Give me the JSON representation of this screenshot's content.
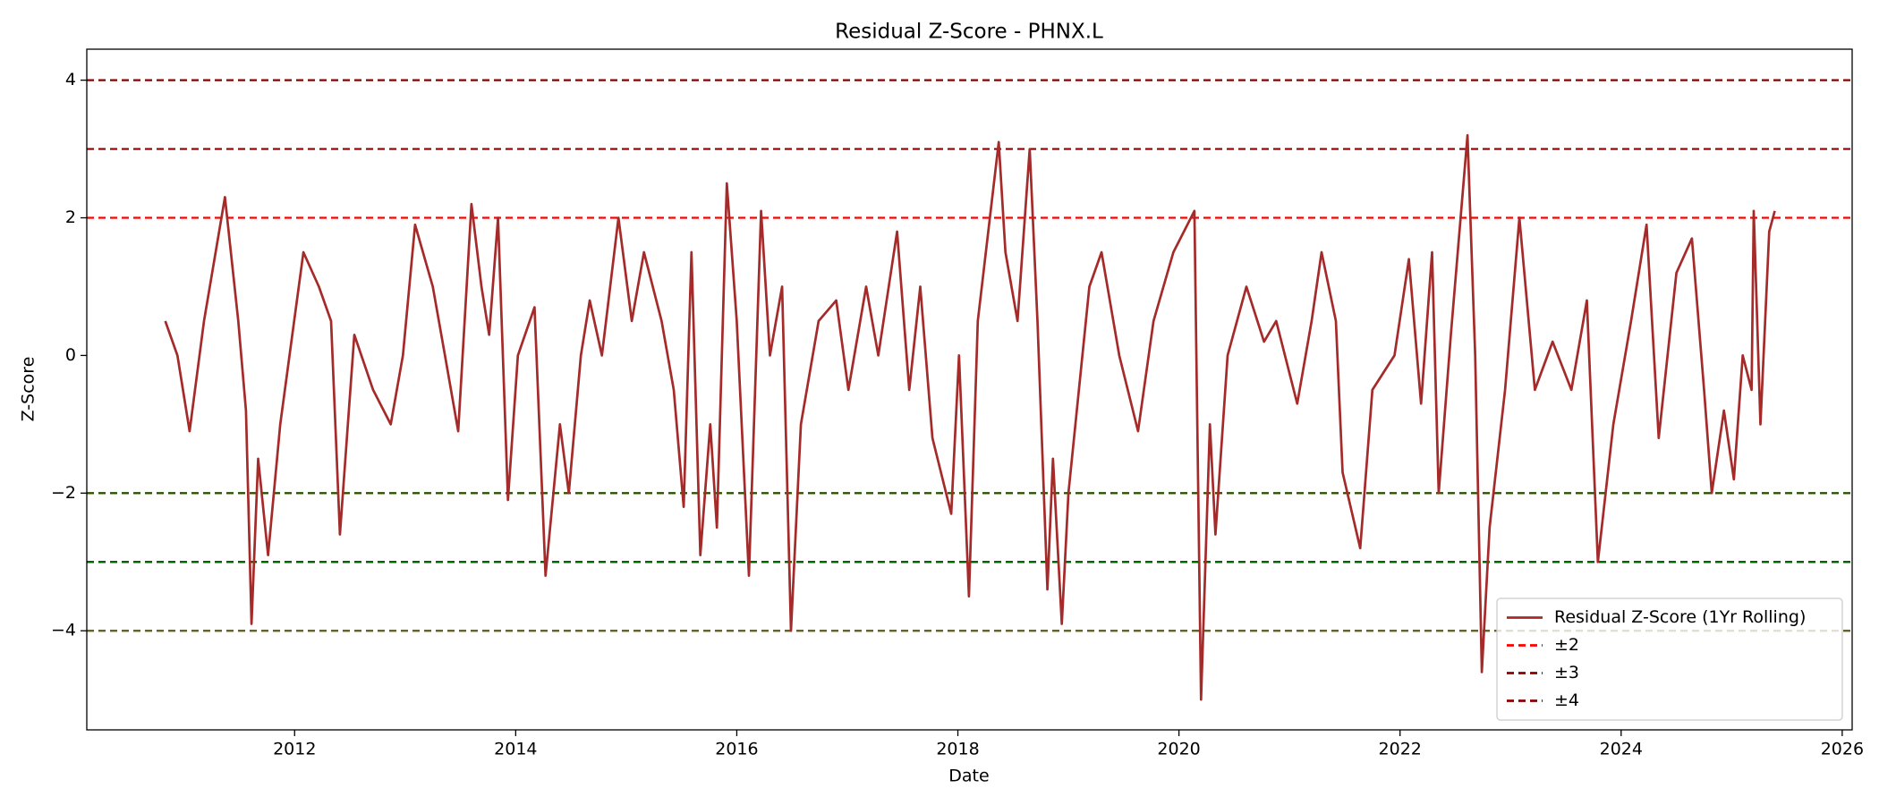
{
  "chart_data": {
    "type": "line",
    "title": "Residual Z-Score - PHNX.L",
    "x_label": "Date",
    "y_label": "Z-Score",
    "xlim": [
      2010.12,
      2026.09
    ],
    "xticks": [
      2012,
      2014,
      2016,
      2018,
      2020,
      2022,
      2024,
      2026
    ],
    "ylim": [
      -5.44,
      4.45
    ],
    "yticks": [
      {
        "value": -4,
        "label": "−4"
      },
      {
        "value": -2,
        "label": "−2"
      },
      0,
      2,
      4
    ],
    "legend": "lower right",
    "x": [
      2010.83,
      2010.94,
      2011.05,
      2011.18,
      2011.37,
      2011.49,
      2011.56,
      2011.61,
      2011.67,
      2011.76,
      2011.87,
      2012.08,
      2012.22,
      2012.33,
      2012.41,
      2012.54,
      2012.71,
      2012.87,
      2012.98,
      2013.09,
      2013.25,
      2013.36,
      2013.48,
      2013.6,
      2013.69,
      2013.76,
      2013.84,
      2013.93,
      2014.02,
      2014.17,
      2014.27,
      2014.4,
      2014.48,
      2014.59,
      2014.67,
      2014.78,
      2014.93,
      2015.05,
      2015.16,
      2015.32,
      2015.43,
      2015.52,
      2015.59,
      2015.67,
      2015.76,
      2015.82,
      2015.91,
      2016.0,
      2016.11,
      2016.22,
      2016.3,
      2016.41,
      2016.49,
      2016.58,
      2016.74,
      2016.9,
      2017.01,
      2017.17,
      2017.28,
      2017.45,
      2017.56,
      2017.66,
      2017.77,
      2017.94,
      2018.01,
      2018.1,
      2018.18,
      2018.37,
      2018.43,
      2018.54,
      2018.65,
      2018.72,
      2018.81,
      2018.86,
      2018.94,
      2019.0,
      2019.19,
      2019.3,
      2019.46,
      2019.63,
      2019.77,
      2019.95,
      2020.14,
      2020.2,
      2020.28,
      2020.33,
      2020.44,
      2020.61,
      2020.77,
      2020.88,
      2021.07,
      2021.2,
      2021.29,
      2021.42,
      2021.48,
      2021.64,
      2021.75,
      2021.95,
      2022.08,
      2022.19,
      2022.29,
      2022.35,
      2022.46,
      2022.61,
      2022.68,
      2022.74,
      2022.81,
      2022.95,
      2023.08,
      2023.22,
      2023.38,
      2023.55,
      2023.69,
      2023.79,
      2023.93,
      2024.09,
      2024.23,
      2024.34,
      2024.5,
      2024.64,
      2024.75,
      2024.82,
      2024.93,
      2025.02,
      2025.1,
      2025.18,
      2025.2,
      2025.26,
      2025.34,
      2025.39
    ],
    "series": [
      {
        "name": "Residual Z-Score (1Yr Rolling)",
        "color": "#a52a2a",
        "values": [
          0.5,
          0.0,
          -1.1,
          0.5,
          2.3,
          0.5,
          -0.8,
          -3.9,
          -1.5,
          -2.9,
          -1.0,
          1.5,
          1.0,
          0.5,
          -2.6,
          0.3,
          -0.5,
          -1.0,
          0.0,
          1.9,
          1.0,
          0.0,
          -1.1,
          2.2,
          1.0,
          0.3,
          2.0,
          -2.1,
          0.0,
          0.7,
          -3.2,
          -1.0,
          -2.0,
          0.0,
          0.8,
          0.0,
          2.0,
          0.5,
          1.5,
          0.5,
          -0.5,
          -2.2,
          1.5,
          -2.9,
          -1.0,
          -2.5,
          2.5,
          0.5,
          -3.2,
          2.1,
          0.0,
          1.0,
          -4.0,
          -1.0,
          0.5,
          0.8,
          -0.5,
          1.0,
          0.0,
          1.8,
          -0.5,
          1.0,
          -1.2,
          -2.3,
          0.0,
          -3.5,
          0.5,
          3.1,
          1.5,
          0.5,
          3.0,
          0.5,
          -3.4,
          -1.5,
          -3.9,
          -2.0,
          1.0,
          1.5,
          0.0,
          -1.1,
          0.5,
          1.5,
          2.1,
          -5.0,
          -1.0,
          -2.6,
          0.0,
          1.0,
          0.2,
          0.5,
          -0.7,
          0.5,
          1.5,
          0.5,
          -1.7,
          -2.8,
          -0.5,
          0.0,
          1.4,
          -0.7,
          1.5,
          -2.0,
          0.3,
          3.2,
          0.0,
          -4.6,
          -2.5,
          -0.5,
          2.0,
          -0.5,
          0.2,
          -0.5,
          0.8,
          -3.0,
          -1.0,
          0.5,
          1.9,
          -1.2,
          1.2,
          1.7,
          -0.5,
          -2.0,
          -0.8,
          -1.8,
          0.0,
          -0.5,
          2.1,
          -1.0,
          1.8,
          2.1
        ]
      }
    ],
    "reference_lines": [
      {
        "name": "±2",
        "color": "#ff0000",
        "values": [
          2,
          -2
        ]
      },
      {
        "name": "±3",
        "color": "#8b0000",
        "values": [
          3,
          -3
        ]
      },
      {
        "name": "±4",
        "color": "#8b0000",
        "values": [
          4,
          -4
        ]
      },
      {
        "color": "#006400",
        "values": [
          -2,
          -3
        ]
      },
      {
        "color": "#556b2f",
        "values": [
          -4
        ]
      }
    ]
  }
}
